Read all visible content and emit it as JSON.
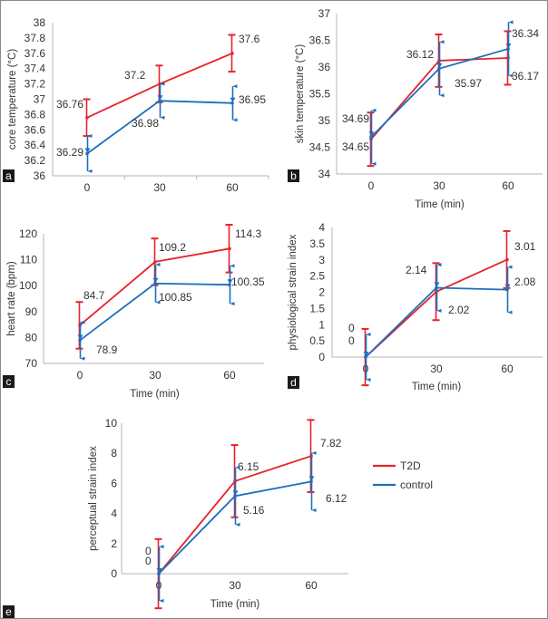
{
  "colors": {
    "t2d": "#e8232b",
    "control": "#1b6fbf",
    "axis": "#b5b5b5",
    "text": "#333333",
    "panel_label_bg": "#1a1a1a"
  },
  "legend": {
    "items": [
      {
        "name": "T2D",
        "color": "#e8232b"
      },
      {
        "name": "control",
        "color": "#1b6fbf"
      }
    ]
  },
  "chart_data": [
    {
      "id": "a",
      "panel_label": "a",
      "type": "line",
      "xlabel": "Time (min)",
      "ylabel": "core temperature (°C)",
      "x": [
        0,
        30,
        60
      ],
      "x_tick_labels": [
        "0",
        "30",
        "60"
      ],
      "ylim": [
        36,
        38
      ],
      "y_ticks": [
        36,
        36.2,
        36.4,
        36.6,
        36.8,
        37,
        37.2,
        37.4,
        37.6,
        37.8,
        38
      ],
      "y_tick_labels": [
        "36",
        "36.2",
        "36.4",
        "36.6",
        "36.8",
        "37",
        "37.2",
        "37.4",
        "37.6",
        "37.8",
        "38"
      ],
      "series": [
        {
          "name": "T2D",
          "values": [
            36.76,
            37.2,
            37.6
          ],
          "error": [
            0.24,
            0.24,
            0.24
          ],
          "labels": [
            "36.76",
            "37.2",
            "37.6"
          ]
        },
        {
          "name": "control",
          "values": [
            36.29,
            36.98,
            36.95
          ],
          "error": [
            0.23,
            0.22,
            0.22
          ],
          "labels": [
            "36.29",
            "36.98",
            "36.95"
          ]
        }
      ]
    },
    {
      "id": "b",
      "panel_label": "b",
      "type": "line",
      "xlabel": "Time (min)",
      "ylabel": "skin temperature (°C)",
      "x": [
        0,
        30,
        60
      ],
      "x_tick_labels": [
        "0",
        "30",
        "60"
      ],
      "ylim": [
        34,
        37
      ],
      "y_ticks": [
        34,
        34.5,
        35,
        35.5,
        36,
        36.5,
        37
      ],
      "y_tick_labels": [
        "34",
        "34.5",
        "35",
        "35.5",
        "36",
        "36.5",
        "37"
      ],
      "series": [
        {
          "name": "T2D",
          "values": [
            34.65,
            36.12,
            36.17
          ],
          "error": [
            0.5,
            0.49,
            0.5
          ],
          "labels": [
            "34.65",
            "36.12",
            "36.17"
          ]
        },
        {
          "name": "control",
          "values": [
            34.69,
            35.97,
            36.34
          ],
          "error": [
            0.5,
            0.5,
            0.5
          ],
          "labels": [
            "34.69",
            "35.97",
            "36.34"
          ]
        }
      ]
    },
    {
      "id": "c",
      "panel_label": "c",
      "type": "line",
      "xlabel": "Time (min)",
      "ylabel": "heart rate (bpm)",
      "x": [
        0,
        30,
        60
      ],
      "x_tick_labels": [
        "0",
        "30",
        "60"
      ],
      "ylim": [
        70,
        120
      ],
      "y_ticks": [
        70,
        80,
        90,
        100,
        110,
        120
      ],
      "y_tick_labels": [
        "70",
        "80",
        "90",
        "100",
        "110",
        "120"
      ],
      "series": [
        {
          "name": "T2D",
          "values": [
            84.7,
            109.2,
            114.3
          ],
          "error": [
            9,
            9,
            9.2
          ],
          "labels": [
            "84.7",
            "109.2",
            "114.3"
          ]
        },
        {
          "name": "control",
          "values": [
            78.9,
            100.85,
            100.35
          ],
          "error": [
            7,
            7.3,
            7.3
          ],
          "labels": [
            "78.9",
            "100.85",
            "100.35"
          ]
        }
      ]
    },
    {
      "id": "d",
      "panel_label": "d",
      "type": "line",
      "xlabel": "Time (min)",
      "ylabel": "physiological strain index",
      "x": [
        0,
        30,
        60
      ],
      "x_tick_labels": [
        "0",
        "30",
        "60"
      ],
      "ylim": [
        0,
        4
      ],
      "y_ticks": [
        0,
        0.5,
        1,
        1.5,
        2,
        2.5,
        3,
        3.5,
        4
      ],
      "y_tick_labels": [
        "0",
        "0.5",
        "1",
        "1.5",
        "2",
        "2.5",
        "3",
        "3.5",
        "4"
      ],
      "series": [
        {
          "name": "T2D",
          "values": [
            0,
            2.02,
            3.01
          ],
          "error": [
            0.87,
            0.88,
            0.88
          ],
          "labels": [
            "0",
            "2.02",
            "3.01"
          ]
        },
        {
          "name": "control",
          "values": [
            0,
            2.14,
            2.08
          ],
          "error": [
            0.7,
            0.71,
            0.7
          ],
          "labels": [
            "0",
            "2.14",
            "2.08"
          ]
        }
      ]
    },
    {
      "id": "e",
      "panel_label": "e",
      "type": "line",
      "xlabel": "Time (min)",
      "ylabel": "perceptual strain index",
      "x": [
        0,
        30,
        60
      ],
      "x_tick_labels": [
        "0",
        "30",
        "60"
      ],
      "ylim": [
        0,
        10
      ],
      "y_ticks": [
        0,
        2,
        4,
        6,
        8,
        10
      ],
      "y_tick_labels": [
        "0",
        "2",
        "4",
        "6",
        "8",
        "10"
      ],
      "series": [
        {
          "name": "T2D",
          "values": [
            0,
            6.15,
            7.82
          ],
          "error": [
            2.3,
            2.4,
            2.4
          ],
          "labels": [
            "0",
            "6.15",
            "7.82"
          ]
        },
        {
          "name": "control",
          "values": [
            0,
            5.16,
            6.12
          ],
          "error": [
            1.8,
            1.9,
            1.9
          ],
          "labels": [
            "0",
            "5.16",
            "6.12"
          ]
        }
      ]
    }
  ]
}
